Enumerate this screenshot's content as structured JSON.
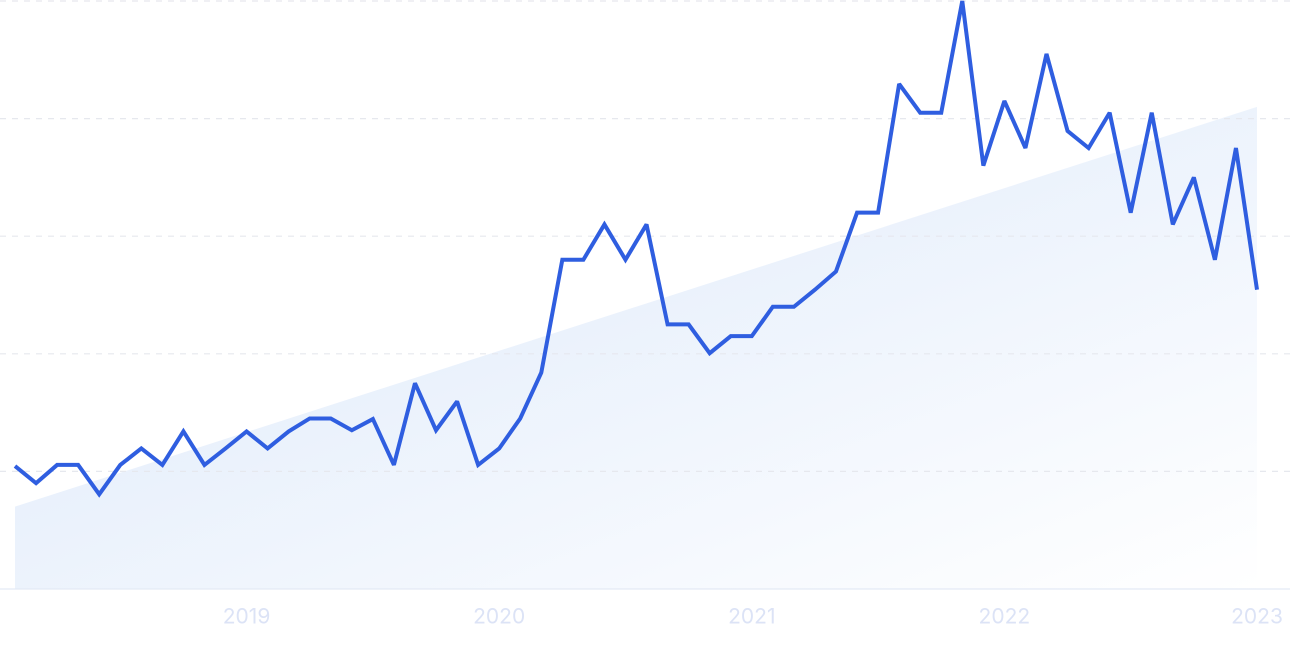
{
  "chart_data": {
    "type": "line",
    "x": [
      2018.0833,
      2018.1667,
      2018.25,
      2018.3333,
      2018.4167,
      2018.5,
      2018.5833,
      2018.6667,
      2018.75,
      2018.8333,
      2018.9167,
      2019,
      2019.0833,
      2019.1667,
      2019.25,
      2019.3333,
      2019.4167,
      2019.5,
      2019.5833,
      2019.6667,
      2019.75,
      2019.8333,
      2019.9167,
      2020,
      2020.0833,
      2020.1667,
      2020.25,
      2020.3333,
      2020.4167,
      2020.5,
      2020.5833,
      2020.6667,
      2020.75,
      2020.8333,
      2020.9167,
      2021,
      2021.0833,
      2021.1667,
      2021.25,
      2021.3333,
      2021.4167,
      2021.5,
      2021.5833,
      2021.6667,
      2021.75,
      2021.8333,
      2021.9167,
      2022,
      2022.0833,
      2022.1667,
      2022.25,
      2022.3333,
      2022.4167,
      2022.5,
      2022.5833,
      2022.6667,
      2022.75,
      2022.8333,
      2022.9167,
      2023
    ],
    "series": [
      {
        "color": "#2f5ee0",
        "values": [
          20.9,
          18.0,
          21.1,
          21.1,
          16.1,
          21.1,
          23.9,
          21.1,
          26.8,
          21.1,
          23.9,
          26.8,
          23.9,
          26.8,
          29.0,
          29.0,
          27.0,
          28.9,
          21.1,
          35.0,
          27.0,
          31.9,
          21.1,
          23.9,
          29.0,
          36.8,
          56.0,
          56.0,
          62.0,
          56.0,
          62.0,
          45.0,
          45.0,
          40.1,
          43.0,
          43.0,
          48.0,
          48.0,
          50.9,
          54.0,
          64.0,
          64.0,
          85.9,
          81.0,
          81.0,
          100,
          72.0,
          83.0,
          75.0,
          91.0,
          77.9,
          75.0,
          81.0,
          64.0,
          81.0,
          62.0,
          70.0,
          56.0,
          75.0,
          50.9
        ]
      }
    ],
    "trend": [
      14,
      82
    ],
    "xlim": [
      2018.0833,
      2023
    ],
    "xticks": [
      2019,
      2020,
      2021,
      2022,
      2023
    ],
    "ylim": [
      0,
      100
    ],
    "yticks": [
      0,
      20,
      40,
      60,
      80,
      100
    ],
    "grid": true
  }
}
